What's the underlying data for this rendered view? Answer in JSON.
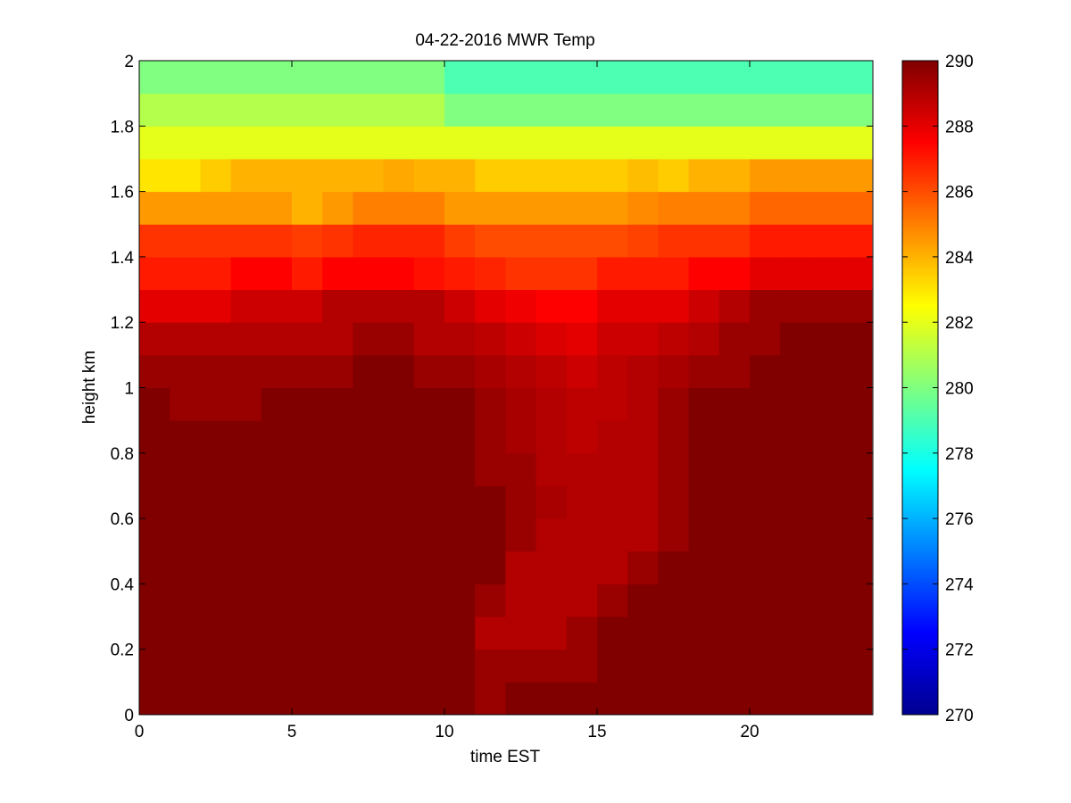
{
  "chart_data": {
    "type": "heatmap",
    "title": "04-22-2016 MWR Temp",
    "xlabel": "time EST",
    "ylabel": "height km",
    "xlim": [
      0,
      24
    ],
    "ylim": [
      0,
      2
    ],
    "x_ticks": [
      "0",
      "5",
      "10",
      "15",
      "20"
    ],
    "y_ticks": [
      "0",
      "0.2",
      "0.4",
      "0.6",
      "0.8",
      "1",
      "1.2",
      "1.4",
      "1.6",
      "1.8",
      "2"
    ],
    "x_values": [
      0.5,
      1.5,
      2.5,
      3.5,
      4.5,
      5.5,
      6.5,
      7.5,
      8.5,
      9.5,
      10.5,
      11.5,
      12.5,
      13.5,
      14.5,
      15.5,
      16.5,
      17.5,
      18.5,
      19.5,
      20.5,
      21.5,
      22.5,
      23.5
    ],
    "y_values": [
      0.05,
      0.15,
      0.25,
      0.35,
      0.45,
      0.55,
      0.65,
      0.75,
      0.85,
      0.95,
      1.05,
      1.15,
      1.25,
      1.35,
      1.45,
      1.55,
      1.65,
      1.75,
      1.85,
      1.95
    ],
    "values": [
      [
        290,
        290,
        290,
        290,
        290,
        290,
        290,
        290,
        290,
        290,
        290,
        289.5,
        290,
        290,
        290,
        290,
        290,
        290,
        290,
        290,
        290,
        290,
        290,
        290
      ],
      [
        290,
        290,
        290,
        290,
        290,
        290,
        290,
        290,
        290,
        290,
        290,
        289.5,
        289.5,
        289.5,
        289.5,
        290,
        290,
        290,
        290,
        290,
        290,
        290,
        290,
        290
      ],
      [
        290,
        290,
        290,
        290,
        290,
        290,
        290,
        290,
        290,
        290,
        290,
        289,
        289,
        289,
        289.5,
        290,
        290,
        290,
        290,
        290,
        290,
        290,
        290,
        290
      ],
      [
        290,
        290,
        290,
        290,
        290,
        290,
        290,
        290,
        290,
        290,
        290,
        289.5,
        289,
        289,
        289,
        289.5,
        290,
        290,
        290,
        290,
        290,
        290,
        290,
        290
      ],
      [
        290,
        290,
        290,
        290,
        290,
        290,
        290,
        290,
        290,
        290,
        290,
        290,
        289,
        289,
        289,
        289,
        289.5,
        290,
        290,
        290,
        290,
        290,
        290,
        290
      ],
      [
        290,
        290,
        290,
        290,
        290,
        290,
        290,
        290,
        290,
        290,
        290,
        290,
        289.5,
        289,
        289,
        289,
        289,
        289.5,
        290,
        290,
        290,
        290,
        290,
        290
      ],
      [
        290,
        290,
        290,
        290,
        290,
        290,
        290,
        290,
        290,
        290,
        290,
        290,
        289.5,
        289.2,
        289,
        289,
        289,
        289.5,
        290,
        290,
        290,
        290,
        290,
        290
      ],
      [
        290,
        290,
        290,
        290,
        290,
        290,
        290,
        290,
        290,
        290,
        290,
        289.5,
        289.5,
        289,
        289,
        289,
        289,
        289.5,
        290,
        290,
        290,
        290,
        290,
        290
      ],
      [
        290,
        290,
        290,
        290,
        290,
        290,
        290,
        290,
        290,
        290,
        290,
        289.5,
        289.2,
        289,
        288.8,
        289,
        289,
        289.5,
        290,
        290,
        290,
        290,
        290,
        290
      ],
      [
        290,
        289.5,
        289.5,
        289.5,
        290,
        290,
        290,
        290,
        290,
        290,
        290,
        289.5,
        289.2,
        289,
        288.8,
        288.8,
        289,
        289.5,
        290,
        290,
        290,
        290,
        290,
        290
      ],
      [
        289.5,
        289.5,
        289.5,
        289.5,
        289.5,
        289.5,
        289.5,
        290,
        290,
        289.5,
        289.5,
        289.2,
        289,
        288.8,
        288.5,
        288.8,
        289,
        289.2,
        289.5,
        289.5,
        290,
        290,
        290,
        290
      ],
      [
        289,
        289,
        289,
        289,
        289,
        289,
        289,
        289.5,
        289.5,
        289,
        289,
        288.8,
        288.5,
        288.2,
        288,
        288.5,
        288.5,
        288.8,
        289,
        289.5,
        289.5,
        290,
        290,
        290
      ],
      [
        288,
        288,
        288,
        288.5,
        288.5,
        288.5,
        289,
        289,
        289,
        289,
        288.5,
        288,
        287.8,
        287.5,
        287.5,
        288,
        288,
        288,
        288.5,
        289,
        289.5,
        289.5,
        289.5,
        289.5
      ],
      [
        287,
        287,
        287,
        287.5,
        287.5,
        287,
        287.5,
        287.5,
        287.5,
        287.2,
        287,
        286.8,
        286.5,
        286.5,
        286.5,
        287,
        287,
        287,
        287.5,
        287.5,
        288,
        288,
        288,
        288
      ],
      [
        286.5,
        286.5,
        286.5,
        286.5,
        286.5,
        286.3,
        286.5,
        286.8,
        286.8,
        286.8,
        286.3,
        286,
        286,
        286,
        286,
        286,
        286.2,
        286.5,
        286.5,
        286.5,
        287,
        287,
        287,
        287
      ],
      [
        284.5,
        284.5,
        284.5,
        284.5,
        284.5,
        284,
        284.5,
        285,
        285,
        285,
        284.5,
        284.5,
        284.5,
        284.5,
        284.5,
        284.5,
        284.8,
        285,
        285,
        285,
        285.5,
        285.5,
        285.5,
        285.5
      ],
      [
        283,
        283,
        283.5,
        284,
        284,
        284,
        284,
        284,
        284.2,
        284,
        284,
        283.5,
        283.5,
        283.5,
        283.5,
        283.5,
        283.8,
        283.5,
        284,
        284,
        284.5,
        284.5,
        284.5,
        284.5
      ],
      [
        282,
        282,
        282,
        282,
        282,
        282,
        282,
        282,
        282,
        282,
        282,
        282,
        282,
        282,
        282,
        282,
        282,
        282,
        282,
        282,
        282,
        282,
        282,
        282
      ],
      [
        281,
        281,
        281,
        281,
        281,
        281,
        281,
        281,
        281,
        281,
        280,
        280,
        280,
        280,
        280,
        280,
        280,
        280,
        280,
        280,
        280,
        280,
        280,
        280
      ],
      [
        280,
        280,
        280,
        280,
        280,
        280,
        280,
        280,
        280,
        280,
        279,
        279,
        279,
        279,
        279,
        279,
        279,
        279,
        279,
        279,
        279,
        279,
        279,
        279
      ]
    ],
    "colorbar": {
      "colormap": "jet",
      "range": [
        270,
        290
      ],
      "ticks": [
        "270",
        "272",
        "274",
        "276",
        "278",
        "280",
        "282",
        "284",
        "286",
        "288",
        "290"
      ]
    },
    "grid": false,
    "legend": "none"
  }
}
